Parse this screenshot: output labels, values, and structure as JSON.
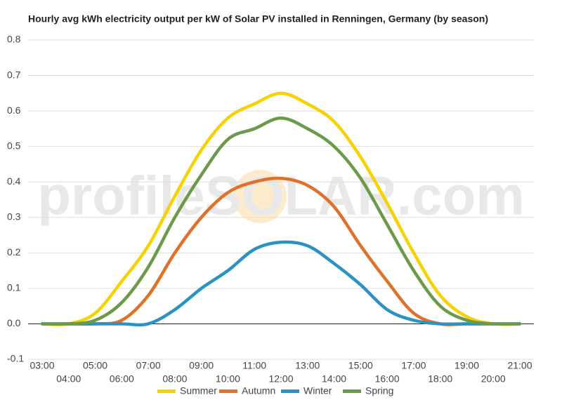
{
  "chart_data": {
    "type": "line",
    "title": "Hourly avg kWh electricity output per kW of Solar PV installed in Renningen, Germany (by season)",
    "watermark": "profileSOLAR.com",
    "categories": [
      "03:00",
      "04:00",
      "05:00",
      "06:00",
      "07:00",
      "08:00",
      "09:00",
      "10:00",
      "11:00",
      "12:00",
      "13:00",
      "14:00",
      "15:00",
      "16:00",
      "17:00",
      "18:00",
      "19:00",
      "20:00",
      "21:00"
    ],
    "series": [
      {
        "name": "Summer",
        "color": "#f7d200",
        "values": [
          0,
          0,
          0.03,
          0.12,
          0.22,
          0.36,
          0.49,
          0.58,
          0.62,
          0.65,
          0.62,
          0.57,
          0.47,
          0.34,
          0.2,
          0.08,
          0.02,
          0,
          0
        ]
      },
      {
        "name": "Autumn",
        "color": "#e0702a",
        "values": [
          0,
          0,
          0,
          0.01,
          0.08,
          0.2,
          0.3,
          0.37,
          0.4,
          0.41,
          0.39,
          0.33,
          0.22,
          0.12,
          0.03,
          0,
          0,
          0,
          0
        ]
      },
      {
        "name": "Winter",
        "color": "#2a93c4",
        "values": [
          0,
          0,
          0,
          0,
          0,
          0.04,
          0.1,
          0.15,
          0.21,
          0.23,
          0.22,
          0.17,
          0.11,
          0.04,
          0.01,
          0,
          0,
          0,
          0
        ]
      },
      {
        "name": "Spring",
        "color": "#6b9a4b",
        "values": [
          0,
          0,
          0.01,
          0.06,
          0.16,
          0.3,
          0.42,
          0.52,
          0.55,
          0.58,
          0.55,
          0.5,
          0.41,
          0.28,
          0.15,
          0.05,
          0.01,
          0,
          0
        ]
      }
    ],
    "ylim": [
      -0.1,
      0.8
    ],
    "yticks": [
      -0.1,
      {
        "value": 0,
        "label": "0.0"
      },
      0.1,
      0.2,
      0.3,
      0.4,
      0.5,
      0.6,
      0.7,
      0.8
    ],
    "grid": true,
    "legend": "bottom"
  }
}
